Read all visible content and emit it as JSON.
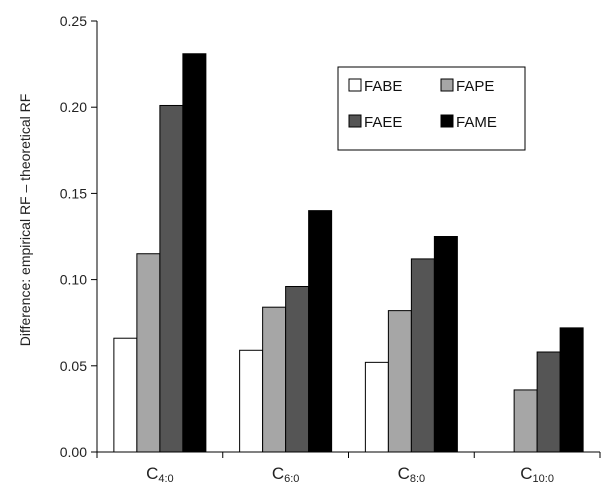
{
  "chart_data": {
    "type": "bar",
    "title": "",
    "xlabel": "",
    "ylabel": "Difference: empirical RF – theoretical RF",
    "ylim": [
      0,
      0.25
    ],
    "yticks": [
      "0.00",
      "0.05",
      "0.10",
      "0.15",
      "0.20",
      "0.25"
    ],
    "categories": [
      {
        "main": "C",
        "sub": "4:0"
      },
      {
        "main": "C",
        "sub": "6:0"
      },
      {
        "main": "C",
        "sub": "8:0"
      },
      {
        "main": "C",
        "sub": "10:0"
      }
    ],
    "series": [
      {
        "name": "FABE",
        "color": "#ffffff",
        "values": [
          0.066,
          0.059,
          0.052,
          0.0
        ]
      },
      {
        "name": "FAPE",
        "color": "#a6a6a6",
        "values": [
          0.115,
          0.084,
          0.082,
          0.036
        ]
      },
      {
        "name": "FAEE",
        "color": "#555555",
        "values": [
          0.201,
          0.096,
          0.112,
          0.058
        ]
      },
      {
        "name": "FAME",
        "color": "#000000",
        "values": [
          0.231,
          0.14,
          0.125,
          0.072
        ]
      }
    ],
    "legend_position": "top-right",
    "grid": false
  }
}
